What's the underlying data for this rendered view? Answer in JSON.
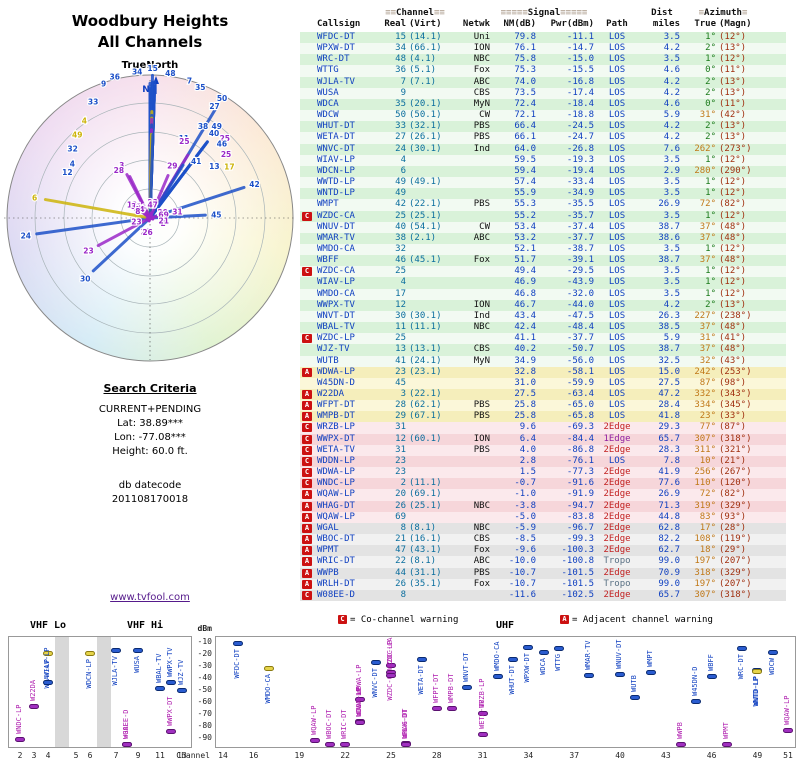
{
  "radar": {
    "title1": "Woodbury Heights",
    "title2": "All Channels",
    "north": "TrueNorth",
    "n": "N"
  },
  "search": {
    "heading": "Search Criteria",
    "mode": "CURRENT+PENDING",
    "lat": "Lat: 38.89***",
    "lon": "Lon: -77.08***",
    "height": "Height: 60.0 ft.",
    "datecode_label": "db datecode",
    "datecode": "201108170018",
    "link": "www.tvfool.com"
  },
  "palette": {
    "accent_blue": "#1040c0",
    "warning_red": "#cc1111",
    "analog_yellow": "#e6d44a",
    "flagged_purple": "#a030c0",
    "link_purple": "#551a8b",
    "los_blue": "#1040c0",
    "edge2_red": "#c22020",
    "edge1_purple": "#9020a0",
    "tropo_gray": "#5a7184"
  },
  "table": {
    "groups": {
      "channel_deco": "≡≡",
      "channel": "Channel",
      "signal_deco": "≡≡≡≡≡",
      "signal": "Signal",
      "dist": "Dist",
      "azimuth_deco": "≡",
      "azimuth": "Azimuth"
    },
    "columns": {
      "callsign": "Callsign",
      "real": "Real",
      "virt": "(Virt)",
      "netwk": "Netwk",
      "nm": "NM(dB)",
      "pwr": "Pwr(dBm)",
      "path": "Path",
      "miles": "miles",
      "true": "True",
      "magn": "(Magn)"
    }
  },
  "chart": {
    "legend_co_icon": "C",
    "legend_co": "= Co-channel warning",
    "legend_adj_icon": "A",
    "legend_adj": "= Adjacent channel warning",
    "bands": {
      "vhf_lo": "VHF Lo",
      "vhf_hi": "VHF Hi",
      "uhf": "UHF"
    },
    "dbm_label": "dBm",
    "dbm_ticks": [
      -10,
      -20,
      -30,
      -40,
      -50,
      -60,
      -70,
      -80,
      -90
    ],
    "vhf_ticks": [
      2,
      3,
      4,
      5,
      6,
      7,
      9,
      11,
      13
    ],
    "uhf_ticks": [
      14,
      16,
      19,
      22,
      25,
      28,
      31,
      34,
      37,
      40,
      43,
      46,
      49,
      51
    ],
    "channel_label": "Channel"
  },
  "chart_data": {
    "type": "table",
    "title": "Woodbury Heights All Channels",
    "columns": [
      "Callsign",
      "Real",
      "Virt",
      "Netwk",
      "NM(dB)",
      "Pwr(dBm)",
      "Path",
      "miles",
      "True deg",
      "Magn deg"
    ],
    "rows": [
      {
        "cs": "WFDC-DT",
        "re": 15,
        "vi": "14.1",
        "ne": "Uni",
        "nm": "79.8",
        "pw": "-11.1",
        "pa": "LOS",
        "mi": "3.5",
        "at": 1,
        "am": 12,
        "mk": "",
        "bd": "g",
        "an": false
      },
      {
        "cs": "WPXW-DT",
        "re": 34,
        "vi": "66.1",
        "ne": "ION",
        "nm": "76.1",
        "pw": "-14.7",
        "pa": "LOS",
        "mi": "4.2",
        "at": 2,
        "am": 13,
        "mk": "",
        "bd": "g",
        "an": false
      },
      {
        "cs": "WRC-DT",
        "re": 48,
        "vi": "4.1",
        "ne": "NBC",
        "nm": "75.8",
        "pw": "-15.0",
        "pa": "LOS",
        "mi": "3.5",
        "at": 1,
        "am": 12,
        "mk": "",
        "bd": "g",
        "an": false
      },
      {
        "cs": "WTTG",
        "re": 36,
        "vi": "5.1",
        "ne": "Fox",
        "nm": "75.3",
        "pw": "-15.5",
        "pa": "LOS",
        "mi": "4.6",
        "at": 0,
        "am": 11,
        "mk": "",
        "bd": "g",
        "an": false
      },
      {
        "cs": "WJLA-TV",
        "re": 7,
        "vi": "7.1",
        "ne": "ABC",
        "nm": "74.0",
        "pw": "-16.8",
        "pa": "LOS",
        "mi": "4.2",
        "at": 2,
        "am": 13,
        "mk": "",
        "bd": "g",
        "an": false
      },
      {
        "cs": "WUSA",
        "re": 9,
        "vi": "",
        "ne": "CBS",
        "nm": "73.5",
        "pw": "-17.4",
        "pa": "LOS",
        "mi": "4.2",
        "at": 2,
        "am": 13,
        "mk": "",
        "bd": "g",
        "an": false
      },
      {
        "cs": "WDCA",
        "re": 35,
        "vi": "20.1",
        "ne": "MyN",
        "nm": "72.4",
        "pw": "-18.4",
        "pa": "LOS",
        "mi": "4.6",
        "at": 0,
        "am": 11,
        "mk": "",
        "bd": "g",
        "an": false
      },
      {
        "cs": "WDCW",
        "re": 50,
        "vi": "50.1",
        "ne": "CW",
        "nm": "72.1",
        "pw": "-18.8",
        "pa": "LOS",
        "mi": "5.9",
        "at": 31,
        "am": 42,
        "mk": "",
        "bd": "g",
        "an": false
      },
      {
        "cs": "WHUT-DT",
        "re": 33,
        "vi": "32.1",
        "ne": "PBS",
        "nm": "66.4",
        "pw": "-24.5",
        "pa": "LOS",
        "mi": "4.2",
        "at": 2,
        "am": 13,
        "mk": "",
        "bd": "g",
        "an": false
      },
      {
        "cs": "WETA-DT",
        "re": 27,
        "vi": "26.1",
        "ne": "PBS",
        "nm": "66.1",
        "pw": "-24.7",
        "pa": "LOS",
        "mi": "4.2",
        "at": 2,
        "am": 13,
        "mk": "",
        "bd": "g",
        "an": false
      },
      {
        "cs": "WNVC-DT",
        "re": 24,
        "vi": "30.1",
        "ne": "Ind",
        "nm": "64.0",
        "pw": "-26.8",
        "pa": "LOS",
        "mi": "7.6",
        "at": 262,
        "am": 273,
        "mk": "",
        "bd": "g",
        "an": false
      },
      {
        "cs": "WIAV-LP",
        "re": 4,
        "vi": "",
        "ne": "",
        "nm": "59.5",
        "pw": "-19.3",
        "pa": "LOS",
        "mi": "3.5",
        "at": 1,
        "am": 12,
        "mk": "",
        "bd": "g",
        "an": true
      },
      {
        "cs": "WDCN-LP",
        "re": 6,
        "vi": "",
        "ne": "",
        "nm": "59.4",
        "pw": "-19.4",
        "pa": "LOS",
        "mi": "2.9",
        "at": 280,
        "am": 290,
        "mk": "",
        "bd": "g",
        "an": true
      },
      {
        "cs": "WWTD-LP",
        "re": 49,
        "vi": "49.1",
        "ne": "",
        "nm": "57.4",
        "pw": "-33.4",
        "pa": "LOS",
        "mi": "3.5",
        "at": 1,
        "am": 12,
        "mk": "",
        "bd": "g",
        "an": false
      },
      {
        "cs": "WNTD-LP",
        "re": 49,
        "vi": "",
        "ne": "",
        "nm": "55.9",
        "pw": "-34.9",
        "pa": "LOS",
        "mi": "3.5",
        "at": 1,
        "am": 12,
        "mk": "",
        "bd": "g",
        "an": true
      },
      {
        "cs": "WMPT",
        "re": 42,
        "vi": "22.1",
        "ne": "PBS",
        "nm": "55.3",
        "pw": "-35.5",
        "pa": "LOS",
        "mi": "26.9",
        "at": 72,
        "am": 82,
        "mk": "",
        "bd": "g",
        "an": false
      },
      {
        "cs": "WZDC-CA",
        "re": 25,
        "vi": "25.1",
        "ne": "",
        "nm": "55.2",
        "pw": "-35.7",
        "pa": "LOS",
        "mi": "3.5",
        "at": 1,
        "am": 12,
        "mk": "C",
        "bd": "g",
        "an": false
      },
      {
        "cs": "WNUV-DT",
        "re": 40,
        "vi": "54.1",
        "ne": "CW",
        "nm": "53.4",
        "pw": "-37.4",
        "pa": "LOS",
        "mi": "38.7",
        "at": 37,
        "am": 48,
        "mk": "",
        "bd": "g",
        "an": false
      },
      {
        "cs": "WMAR-TV",
        "re": 38,
        "vi": "2.1",
        "ne": "ABC",
        "nm": "53.2",
        "pw": "-37.7",
        "pa": "LOS",
        "mi": "38.6",
        "at": 37,
        "am": 48,
        "mk": "",
        "bd": "g",
        "an": false
      },
      {
        "cs": "WMDO-CA",
        "re": 32,
        "vi": "",
        "ne": "",
        "nm": "52.1",
        "pw": "-38.7",
        "pa": "LOS",
        "mi": "3.5",
        "at": 1,
        "am": 12,
        "mk": "",
        "bd": "g",
        "an": false
      },
      {
        "cs": "WBFF",
        "re": 46,
        "vi": "45.1",
        "ne": "Fox",
        "nm": "51.7",
        "pw": "-39.1",
        "pa": "LOS",
        "mi": "38.7",
        "at": 37,
        "am": 48,
        "mk": "",
        "bd": "g",
        "an": false
      },
      {
        "cs": "WZDC-CA",
        "re": 25,
        "vi": "",
        "ne": "",
        "nm": "49.4",
        "pw": "-29.5",
        "pa": "LOS",
        "mi": "3.5",
        "at": 1,
        "am": 12,
        "mk": "C",
        "bd": "g",
        "an": true
      },
      {
        "cs": "WIAV-LP",
        "re": 4,
        "vi": "",
        "ne": "",
        "nm": "46.9",
        "pw": "-43.9",
        "pa": "LOS",
        "mi": "3.5",
        "at": 1,
        "am": 12,
        "mk": "",
        "bd": "g",
        "an": false
      },
      {
        "cs": "WMDO-CA",
        "re": 17,
        "vi": "",
        "ne": "",
        "nm": "46.8",
        "pw": "-32.0",
        "pa": "LOS",
        "mi": "3.5",
        "at": 1,
        "am": 12,
        "mk": "",
        "bd": "g",
        "an": true
      },
      {
        "cs": "WWPX-TV",
        "re": 12,
        "vi": "",
        "ne": "ION",
        "nm": "46.7",
        "pw": "-44.0",
        "pa": "LOS",
        "mi": "4.2",
        "at": 2,
        "am": 13,
        "mk": "",
        "bd": "g",
        "an": false
      },
      {
        "cs": "WNVT-DT",
        "re": 30,
        "vi": "30.1",
        "ne": "Ind",
        "nm": "43.4",
        "pw": "-47.5",
        "pa": "LOS",
        "mi": "26.3",
        "at": 227,
        "am": 238,
        "mk": "",
        "bd": "g",
        "an": false
      },
      {
        "cs": "WBAL-TV",
        "re": 11,
        "vi": "11.1",
        "ne": "NBC",
        "nm": "42.4",
        "pw": "-48.4",
        "pa": "LOS",
        "mi": "38.5",
        "at": 37,
        "am": 48,
        "mk": "",
        "bd": "g",
        "an": false
      },
      {
        "cs": "WZDC-LP",
        "re": 25,
        "vi": "",
        "ne": "",
        "nm": "41.1",
        "pw": "-37.7",
        "pa": "LOS",
        "mi": "5.9",
        "at": 31,
        "am": 41,
        "mk": "C",
        "bd": "g",
        "an": false
      },
      {
        "cs": "WJZ-TV",
        "re": 13,
        "vi": "13.1",
        "ne": "CBS",
        "nm": "40.2",
        "pw": "-50.7",
        "pa": "LOS",
        "mi": "38.7",
        "at": 37,
        "am": 48,
        "mk": "",
        "bd": "g",
        "an": false
      },
      {
        "cs": "WUTB",
        "re": 41,
        "vi": "24.1",
        "ne": "MyN",
        "nm": "34.9",
        "pw": "-56.0",
        "pa": "LOS",
        "mi": "32.5",
        "at": 32,
        "am": 43,
        "mk": "",
        "bd": "g",
        "an": false
      },
      {
        "cs": "WDWA-LP",
        "re": 23,
        "vi": "23.1",
        "ne": "",
        "nm": "32.8",
        "pw": "-58.1",
        "pa": "LOS",
        "mi": "15.0",
        "at": 242,
        "am": 253,
        "mk": "A",
        "bd": "y",
        "an": false
      },
      {
        "cs": "W45DN-D",
        "re": 45,
        "vi": "",
        "ne": "",
        "nm": "31.0",
        "pw": "-59.9",
        "pa": "LOS",
        "mi": "27.5",
        "at": 87,
        "am": 98,
        "mk": "",
        "bd": "y",
        "an": false
      },
      {
        "cs": "W22DA",
        "re": 3,
        "vi": "22.1",
        "ne": "",
        "nm": "27.5",
        "pw": "-63.4",
        "pa": "LOS",
        "mi": "47.2",
        "at": 332,
        "am": 343,
        "mk": "A",
        "bd": "y",
        "an": false
      },
      {
        "cs": "WFPT-DT",
        "re": 28,
        "vi": "62.1",
        "ne": "PBS",
        "nm": "25.8",
        "pw": "-65.0",
        "pa": "LOS",
        "mi": "28.4",
        "at": 334,
        "am": 345,
        "mk": "A",
        "bd": "y",
        "an": false
      },
      {
        "cs": "WMPB-DT",
        "re": 29,
        "vi": "67.1",
        "ne": "PBS",
        "nm": "25.8",
        "pw": "-65.8",
        "pa": "LOS",
        "mi": "41.8",
        "at": 23,
        "am": 33,
        "mk": "A",
        "bd": "y",
        "an": false
      },
      {
        "cs": "WRZB-LP",
        "re": 31,
        "vi": "",
        "ne": "",
        "nm": "9.6",
        "pw": "-69.3",
        "pa": "2Edge",
        "mi": "29.3",
        "at": 77,
        "am": 87,
        "mk": "C",
        "bd": "p",
        "an": false
      },
      {
        "cs": "WWPX-DT",
        "re": 12,
        "vi": "60.1",
        "ne": "ION",
        "nm": "6.4",
        "pw": "-84.4",
        "pa": "1Edge",
        "mi": "65.7",
        "at": 307,
        "am": 318,
        "mk": "C",
        "bd": "p",
        "an": false
      },
      {
        "cs": "WETA-TV",
        "re": 31,
        "vi": "",
        "ne": "PBS",
        "nm": "4.0",
        "pw": "-86.8",
        "pa": "2Edge",
        "mi": "28.3",
        "at": 311,
        "am": 321,
        "mk": "C",
        "bd": "p",
        "an": false
      },
      {
        "cs": "WDDN-LP",
        "re": 23,
        "vi": "",
        "ne": "",
        "nm": "2.8",
        "pw": "-76.1",
        "pa": "LOS",
        "mi": "7.8",
        "at": 10,
        "am": 21,
        "mk": "C",
        "bd": "p",
        "an": false
      },
      {
        "cs": "WDWA-LP",
        "re": 23,
        "vi": "",
        "ne": "",
        "nm": "1.5",
        "pw": "-77.3",
        "pa": "2Edge",
        "mi": "41.9",
        "at": 256,
        "am": 267,
        "mk": "C",
        "bd": "p",
        "an": false
      },
      {
        "cs": "WNDC-LP",
        "re": 2,
        "vi": "11.1",
        "ne": "",
        "nm": "-0.7",
        "pw": "-91.6",
        "pa": "2Edge",
        "mi": "77.6",
        "at": 110,
        "am": 120,
        "mk": "C",
        "bd": "p",
        "an": false
      },
      {
        "cs": "WQAW-LP",
        "re": 20,
        "vi": "69.1",
        "ne": "",
        "nm": "-1.0",
        "pw": "-91.9",
        "pa": "2Edge",
        "mi": "26.9",
        "at": 72,
        "am": 82,
        "mk": "A",
        "bd": "p",
        "an": false
      },
      {
        "cs": "WHAG-DT",
        "re": 26,
        "vi": "25.1",
        "ne": "NBC",
        "nm": "-3.8",
        "pw": "-94.7",
        "pa": "2Edge",
        "mi": "71.3",
        "at": 319,
        "am": 329,
        "mk": "A",
        "bd": "p",
        "an": false
      },
      {
        "cs": "WQAW-LP",
        "re": 69,
        "vi": "",
        "ne": "",
        "nm": "-5.0",
        "pw": "-83.8",
        "pa": "2Edge",
        "mi": "44.8",
        "at": 83,
        "am": 93,
        "mk": "A",
        "bd": "p",
        "an": true
      },
      {
        "cs": "WGAL",
        "re": 8,
        "vi": "8.1",
        "ne": "NBC",
        "nm": "-5.9",
        "pw": "-96.7",
        "pa": "2Edge",
        "mi": "62.8",
        "at": 17,
        "am": 28,
        "mk": "A",
        "bd": "s",
        "an": false
      },
      {
        "cs": "WBOC-DT",
        "re": 21,
        "vi": "16.1",
        "ne": "CBS",
        "nm": "-8.5",
        "pw": "-99.3",
        "pa": "2Edge",
        "mi": "82.2",
        "at": 108,
        "am": 119,
        "mk": "A",
        "bd": "s",
        "an": false
      },
      {
        "cs": "WPMT",
        "re": 47,
        "vi": "43.1",
        "ne": "Fox",
        "nm": "-9.6",
        "pw": "-100.3",
        "pa": "2Edge",
        "mi": "62.7",
        "at": 18,
        "am": 29,
        "mk": "A",
        "bd": "s",
        "an": false
      },
      {
        "cs": "WRIC-DT",
        "re": 22,
        "vi": "8.1",
        "ne": "ABC",
        "nm": "-10.0",
        "pw": "-100.8",
        "pa": "Tropo",
        "mi": "99.0",
        "at": 197,
        "am": 207,
        "mk": "A",
        "bd": "s",
        "an": false
      },
      {
        "cs": "WWPB",
        "re": 44,
        "vi": "31.1",
        "ne": "PBS",
        "nm": "-10.7",
        "pw": "-101.5",
        "pa": "2Edge",
        "mi": "70.9",
        "at": 318,
        "am": 329,
        "mk": "A",
        "bd": "s",
        "an": false
      },
      {
        "cs": "WRLH-DT",
        "re": 26,
        "vi": "35.1",
        "ne": "Fox",
        "nm": "-10.7",
        "pw": "-101.5",
        "pa": "Tropo",
        "mi": "99.0",
        "at": 197,
        "am": 207,
        "mk": "A",
        "bd": "s",
        "an": false
      },
      {
        "cs": "W08EE-D",
        "re": 8,
        "vi": "",
        "ne": "",
        "nm": "-11.6",
        "pw": "-102.5",
        "pa": "2Edge",
        "mi": "65.7",
        "at": 307,
        "am": 318,
        "mk": "C",
        "bd": "s",
        "an": false
      }
    ],
    "derived_charts": [
      {
        "type": "radar",
        "angle_field": "at",
        "radius_field": "nm",
        "rings_db": [
          20,
          40,
          60,
          80
        ],
        "north_up": true
      },
      {
        "type": "scatter",
        "x_field": "re",
        "y_field": "pw",
        "xlabel": "Channel",
        "ylabel": "dBm",
        "ylim": [
          -95,
          -5
        ],
        "bands": [
          "VHF Lo",
          "VHF Hi",
          "UHF"
        ]
      }
    ]
  }
}
